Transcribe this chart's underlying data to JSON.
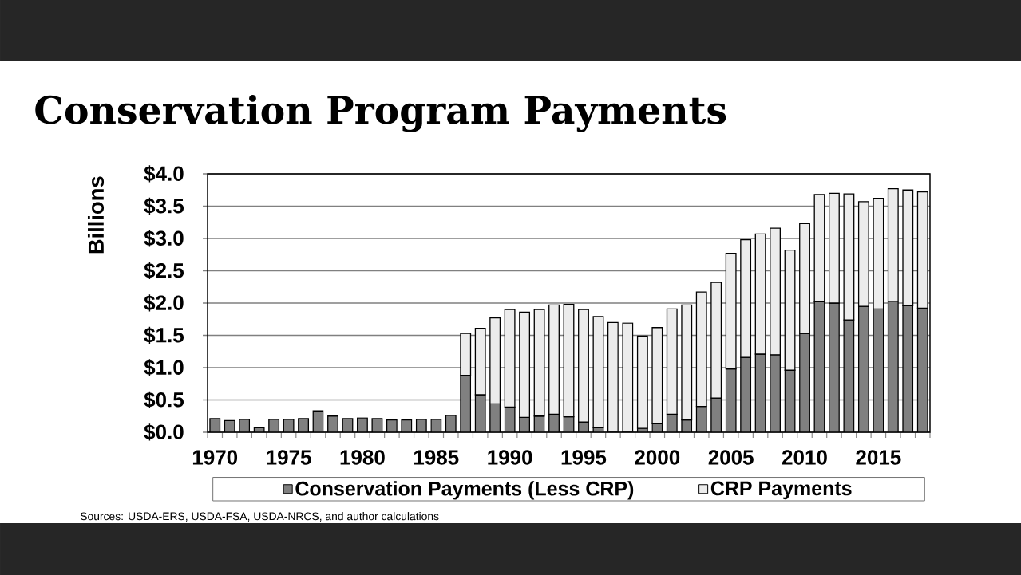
{
  "chart_data": {
    "type": "bar",
    "title": "Conservation Program Payments",
    "ylabel": "Billions",
    "categories": [
      "1970",
      null,
      null,
      null,
      null,
      "1975",
      null,
      null,
      null,
      null,
      "1980",
      null,
      null,
      null,
      null,
      "1985",
      null,
      null,
      null,
      null,
      "1990",
      null,
      null,
      null,
      null,
      "1995",
      null,
      null,
      null,
      null,
      "2000",
      null,
      null,
      null,
      null,
      "2005",
      null,
      null,
      null,
      null,
      "2010",
      null,
      null,
      null,
      null,
      "2015",
      null,
      null,
      null
    ],
    "series": [
      {
        "name": "Conservation Payments (Less CRP)",
        "color": "#808080",
        "values": [
          0.21,
          0.18,
          0.2,
          0.07,
          0.2,
          0.2,
          0.21,
          0.33,
          0.25,
          0.21,
          0.22,
          0.21,
          0.19,
          0.19,
          0.2,
          0.2,
          0.26,
          0.88,
          0.58,
          0.44,
          0.39,
          0.23,
          0.25,
          0.28,
          0.24,
          0.16,
          0.07,
          0.01,
          0.01,
          0.06,
          0.13,
          0.28,
          0.19,
          0.4,
          0.53,
          0.98,
          1.16,
          1.21,
          1.2,
          0.96,
          1.53,
          2.02,
          2.0,
          1.74,
          1.95,
          1.91,
          2.03,
          1.96,
          1.92
        ]
      },
      {
        "name": "CRP Payments",
        "color": "#ececec",
        "values": [
          null,
          null,
          null,
          null,
          null,
          null,
          null,
          null,
          null,
          null,
          null,
          null,
          null,
          null,
          null,
          null,
          null,
          0.65,
          1.03,
          1.33,
          1.51,
          1.63,
          1.65,
          1.69,
          1.74,
          1.74,
          1.72,
          1.69,
          1.68,
          1.43,
          1.49,
          1.63,
          1.78,
          1.77,
          1.79,
          1.79,
          1.82,
          1.86,
          1.96,
          1.86,
          1.7,
          1.66,
          1.7,
          1.95,
          1.62,
          1.71,
          1.74,
          1.79,
          1.8
        ]
      }
    ],
    "stacked": true,
    "ylim": [
      0,
      4
    ],
    "yticks": [
      {
        "value": 0,
        "label": "$0.0"
      },
      {
        "value": 0.5,
        "label": "$0.5"
      },
      {
        "value": 1,
        "label": "$1.0"
      },
      {
        "value": 1.5,
        "label": "$1.5"
      },
      {
        "value": 2,
        "label": "$2.0"
      },
      {
        "value": 2.5,
        "label": "$2.5"
      },
      {
        "value": 3,
        "label": "$3.0"
      },
      {
        "value": 3.5,
        "label": "$3.5"
      },
      {
        "value": 4,
        "label": "$4.0"
      }
    ],
    "grid": "y",
    "legend": "bottom",
    "annotations": [
      "Sources: USDA-ERS, USDA-FSA, USDA-NRCS, and author calculations"
    ]
  }
}
